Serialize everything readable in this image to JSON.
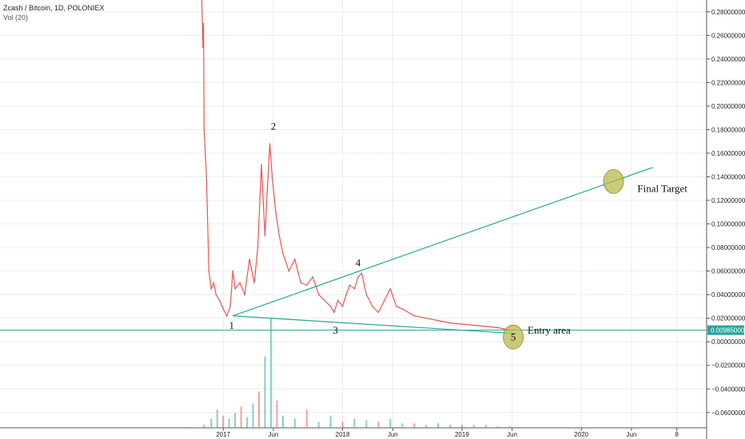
{
  "header": {
    "title": "Zcash / Bitcoin, 1D, POLONIEX",
    "indicator": "Vol (20)"
  },
  "colors": {
    "up": "#26a69a",
    "down": "#ef5350",
    "line": "#26a69a",
    "grid": "#e9ecf0",
    "circle": "#b8b94c",
    "circle_stroke": "#8e8f2a",
    "badge": "#26a69a"
  },
  "chart_data": {
    "type": "line",
    "title": "Zcash / Bitcoin, 1D, POLONIEX",
    "y_ticks": [
      0.28,
      0.26,
      0.24,
      0.22,
      0.2,
      0.18,
      0.16,
      0.14,
      0.12,
      0.1,
      0.08,
      0.06,
      0.04,
      0.02,
      0.0,
      -0.02,
      -0.04,
      -0.06
    ],
    "y_tick_labels": [
      "0.28000000",
      "0.26000000",
      "0.24000000",
      "0.22000000",
      "0.20000000",
      "0.18000000",
      "0.16000000",
      "0.14000000",
      "0.12000000",
      "0.10000000",
      "0.08000000",
      "0.06000000",
      "0.04000000",
      "0.02000000",
      "0.00000000",
      "−0.02000000",
      "−0.04000000",
      "−0.06000000"
    ],
    "ylim": [
      -0.073,
      0.29
    ],
    "x_ticks": [
      "2017",
      "Jun",
      "2018",
      "Jun",
      "2019",
      "Jun",
      "2020",
      "Jun",
      "8"
    ],
    "x_tick_values": [
      2017.0,
      2017.42,
      2018.0,
      2018.42,
      2019.0,
      2019.42,
      2020.0,
      2020.42,
      2020.8
    ],
    "xlim": [
      2015.13,
      2021.05
    ],
    "current_price": {
      "value": 0.00985,
      "label": "0.00985000"
    },
    "price_series": {
      "name": "ZEC/BTC",
      "x": [
        2016.82,
        2016.83,
        2016.835,
        2016.84,
        2016.86,
        2016.88,
        2016.9,
        2016.92,
        2016.94,
        2016.97,
        2017.0,
        2017.03,
        2017.06,
        2017.08,
        2017.1,
        2017.14,
        2017.18,
        2017.22,
        2017.26,
        2017.29,
        2017.32,
        2017.35,
        2017.37,
        2017.39,
        2017.41,
        2017.44,
        2017.47,
        2017.5,
        2017.55,
        2017.6,
        2017.65,
        2017.7,
        2017.75,
        2017.8,
        2017.85,
        2017.9,
        2017.93,
        2017.96,
        2018.0,
        2018.03,
        2018.06,
        2018.1,
        2018.13,
        2018.16,
        2018.2,
        2018.25,
        2018.3,
        2018.35,
        2018.4,
        2018.45,
        2018.5,
        2018.6,
        2018.7,
        2018.8,
        2018.9,
        2019.0,
        2019.1,
        2019.2,
        2019.3,
        2019.35,
        2019.4,
        2019.42
      ],
      "y": [
        0.29,
        0.25,
        0.27,
        0.18,
        0.14,
        0.06,
        0.045,
        0.05,
        0.04,
        0.035,
        0.028,
        0.022,
        0.03,
        0.06,
        0.045,
        0.05,
        0.04,
        0.07,
        0.05,
        0.08,
        0.15,
        0.09,
        0.13,
        0.168,
        0.14,
        0.11,
        0.09,
        0.075,
        0.06,
        0.07,
        0.05,
        0.048,
        0.055,
        0.04,
        0.035,
        0.03,
        0.025,
        0.035,
        0.03,
        0.04,
        0.048,
        0.045,
        0.055,
        0.058,
        0.04,
        0.03,
        0.025,
        0.035,
        0.045,
        0.03,
        0.028,
        0.022,
        0.02,
        0.018,
        0.016,
        0.015,
        0.014,
        0.013,
        0.012,
        0.011,
        0.01,
        0.00985
      ]
    },
    "volume_series": {
      "name": "Vol (20)",
      "x": [
        2016.84,
        2016.9,
        2016.95,
        2017.0,
        2017.05,
        2017.1,
        2017.15,
        2017.2,
        2017.25,
        2017.3,
        2017.35,
        2017.4,
        2017.45,
        2017.5,
        2017.6,
        2017.7,
        2017.8,
        2017.9,
        2018.0,
        2018.1,
        2018.2,
        2018.3,
        2018.4,
        2018.5,
        2018.6,
        2018.7,
        2018.8,
        2018.9,
        2019.0,
        2019.1,
        2019.2,
        2019.3,
        2019.4
      ],
      "y": [
        0.002,
        0.006,
        0.012,
        0.008,
        0.006,
        0.01,
        0.014,
        0.007,
        0.016,
        0.024,
        0.047,
        0.072,
        0.018,
        0.008,
        0.006,
        0.012,
        0.004,
        0.008,
        0.004,
        0.006,
        0.005,
        0.004,
        0.006,
        0.003,
        0.003,
        0.002,
        0.003,
        0.002,
        0.002,
        0.002,
        0.002,
        0.001,
        0.001
      ]
    },
    "trendlines": [
      {
        "name": "upper",
        "from": [
          2017.08,
          0.022
        ],
        "to": [
          2020.6,
          0.148
        ]
      },
      {
        "name": "lower",
        "from": [
          2017.08,
          0.022
        ],
        "to": [
          2019.45,
          0.007
        ]
      }
    ],
    "annotations": [
      {
        "text": "1",
        "x": 2017.07,
        "y": 0.011
      },
      {
        "text": "2",
        "x": 2017.42,
        "y": 0.18
      },
      {
        "text": "3",
        "x": 2017.94,
        "y": 0.007
      },
      {
        "text": "4",
        "x": 2018.13,
        "y": 0.064
      },
      {
        "text": "5",
        "x": 2019.43,
        "y": 0.001
      },
      {
        "text": "Entry area",
        "x": 2019.55,
        "y": 0.007
      },
      {
        "text": "Final Target",
        "x": 2020.47,
        "y": 0.127
      }
    ],
    "markers": [
      {
        "name": "entry-circle",
        "x": 2019.43,
        "y": 0.004
      },
      {
        "name": "target-circle",
        "x": 2020.27,
        "y": 0.136
      }
    ]
  }
}
